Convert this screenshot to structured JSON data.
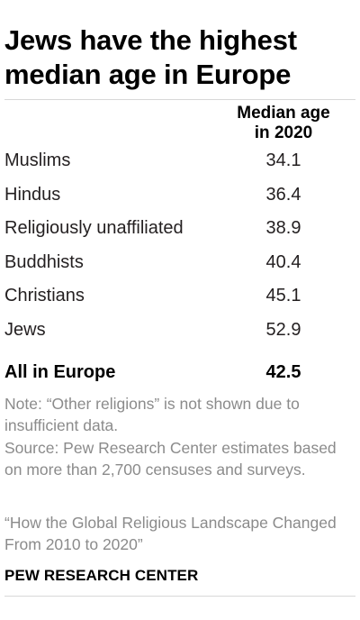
{
  "chart_data": {
    "type": "table",
    "title": "Jews have the highest median age in Europe",
    "column_header": "Median age in 2020",
    "column_header_lines": [
      "Median age",
      "in 2020"
    ],
    "categories": [
      "Muslims",
      "Hindus",
      "Religiously unaffiliated",
      "Buddhists",
      "Christians",
      "Jews"
    ],
    "values": [
      "34.1",
      "36.4",
      "38.9",
      "40.4",
      "45.1",
      "52.9"
    ],
    "total": {
      "label": "All in Europe",
      "value": "42.5"
    }
  },
  "notes": {
    "note": "Note: “Other religions” is not shown due to insufficient data.",
    "source": "Source: Pew Research Center estimates based on more than 2,700 censuses and surveys.",
    "report": "“How the Global Religious Landscape Changed From 2010 to 2020”"
  },
  "brand": "PEW RESEARCH CENTER"
}
